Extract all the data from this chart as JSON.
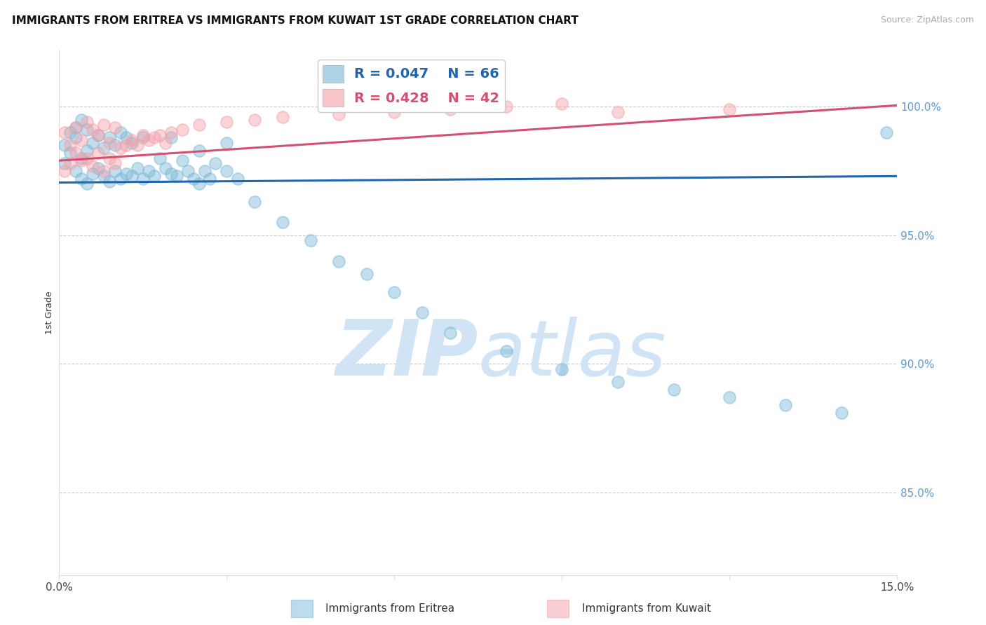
{
  "title": "IMMIGRANTS FROM ERITREA VS IMMIGRANTS FROM KUWAIT 1ST GRADE CORRELATION CHART",
  "source": "Source: ZipAtlas.com",
  "ylabel": "1st Grade",
  "x_label_eritrea": "Immigrants from Eritrea",
  "x_label_kuwait": "Immigrants from Kuwait",
  "xlim": [
    0.0,
    0.15
  ],
  "ylim": [
    0.818,
    1.022
  ],
  "yticks": [
    0.85,
    0.9,
    0.95,
    1.0
  ],
  "ytick_labels": [
    "85.0%",
    "90.0%",
    "95.0%",
    "100.0%"
  ],
  "legend_R_eritrea": "R = 0.047",
  "legend_N_eritrea": "N = 66",
  "legend_R_kuwait": "R = 0.428",
  "legend_N_kuwait": "N = 42",
  "color_eritrea": "#7ab8d9",
  "color_kuwait": "#f4a0a8",
  "color_trendline_eritrea": "#2166ac",
  "color_trendline_kuwait": "#d45070",
  "watermark_color": "#d0e4f5",
  "eritrea_x": [
    0.001,
    0.001,
    0.002,
    0.002,
    0.003,
    0.003,
    0.003,
    0.004,
    0.004,
    0.004,
    0.005,
    0.005,
    0.005,
    0.006,
    0.006,
    0.007,
    0.007,
    0.008,
    0.008,
    0.009,
    0.009,
    0.01,
    0.01,
    0.011,
    0.011,
    0.012,
    0.012,
    0.013,
    0.013,
    0.014,
    0.015,
    0.015,
    0.016,
    0.017,
    0.018,
    0.019,
    0.02,
    0.02,
    0.021,
    0.022,
    0.023,
    0.024,
    0.025,
    0.025,
    0.026,
    0.027,
    0.028,
    0.03,
    0.03,
    0.032,
    0.035,
    0.04,
    0.045,
    0.05,
    0.055,
    0.06,
    0.065,
    0.07,
    0.08,
    0.09,
    0.1,
    0.11,
    0.12,
    0.13,
    0.14,
    0.148
  ],
  "eritrea_y": [
    0.985,
    0.978,
    0.982,
    0.99,
    0.975,
    0.988,
    0.992,
    0.972,
    0.98,
    0.995,
    0.97,
    0.983,
    0.991,
    0.974,
    0.986,
    0.976,
    0.989,
    0.973,
    0.984,
    0.971,
    0.988,
    0.975,
    0.985,
    0.972,
    0.99,
    0.974,
    0.988,
    0.973,
    0.986,
    0.976,
    0.972,
    0.988,
    0.975,
    0.973,
    0.98,
    0.976,
    0.974,
    0.988,
    0.973,
    0.979,
    0.975,
    0.972,
    0.97,
    0.983,
    0.975,
    0.972,
    0.978,
    0.975,
    0.986,
    0.972,
    0.963,
    0.955,
    0.948,
    0.94,
    0.935,
    0.928,
    0.92,
    0.912,
    0.905,
    0.898,
    0.893,
    0.89,
    0.887,
    0.884,
    0.881,
    0.99
  ],
  "kuwait_x": [
    0.001,
    0.001,
    0.002,
    0.002,
    0.003,
    0.003,
    0.004,
    0.004,
    0.005,
    0.005,
    0.006,
    0.006,
    0.007,
    0.007,
    0.008,
    0.008,
    0.009,
    0.009,
    0.01,
    0.01,
    0.011,
    0.012,
    0.013,
    0.014,
    0.015,
    0.016,
    0.017,
    0.018,
    0.019,
    0.02,
    0.022,
    0.025,
    0.03,
    0.035,
    0.04,
    0.05,
    0.06,
    0.07,
    0.08,
    0.09,
    0.1,
    0.12
  ],
  "kuwait_y": [
    0.975,
    0.99,
    0.978,
    0.985,
    0.982,
    0.992,
    0.979,
    0.987,
    0.98,
    0.994,
    0.977,
    0.991,
    0.982,
    0.989,
    0.975,
    0.993,
    0.98,
    0.986,
    0.978,
    0.992,
    0.984,
    0.985,
    0.987,
    0.985,
    0.989,
    0.987,
    0.988,
    0.989,
    0.986,
    0.99,
    0.991,
    0.993,
    0.994,
    0.995,
    0.996,
    0.997,
    0.998,
    0.999,
    1.0,
    1.001,
    0.998,
    0.999
  ],
  "trendline_eritrea_y0": 0.9705,
  "trendline_eritrea_y1": 0.973,
  "trendline_kuwait_y0": 0.979,
  "trendline_kuwait_y1": 1.0005
}
